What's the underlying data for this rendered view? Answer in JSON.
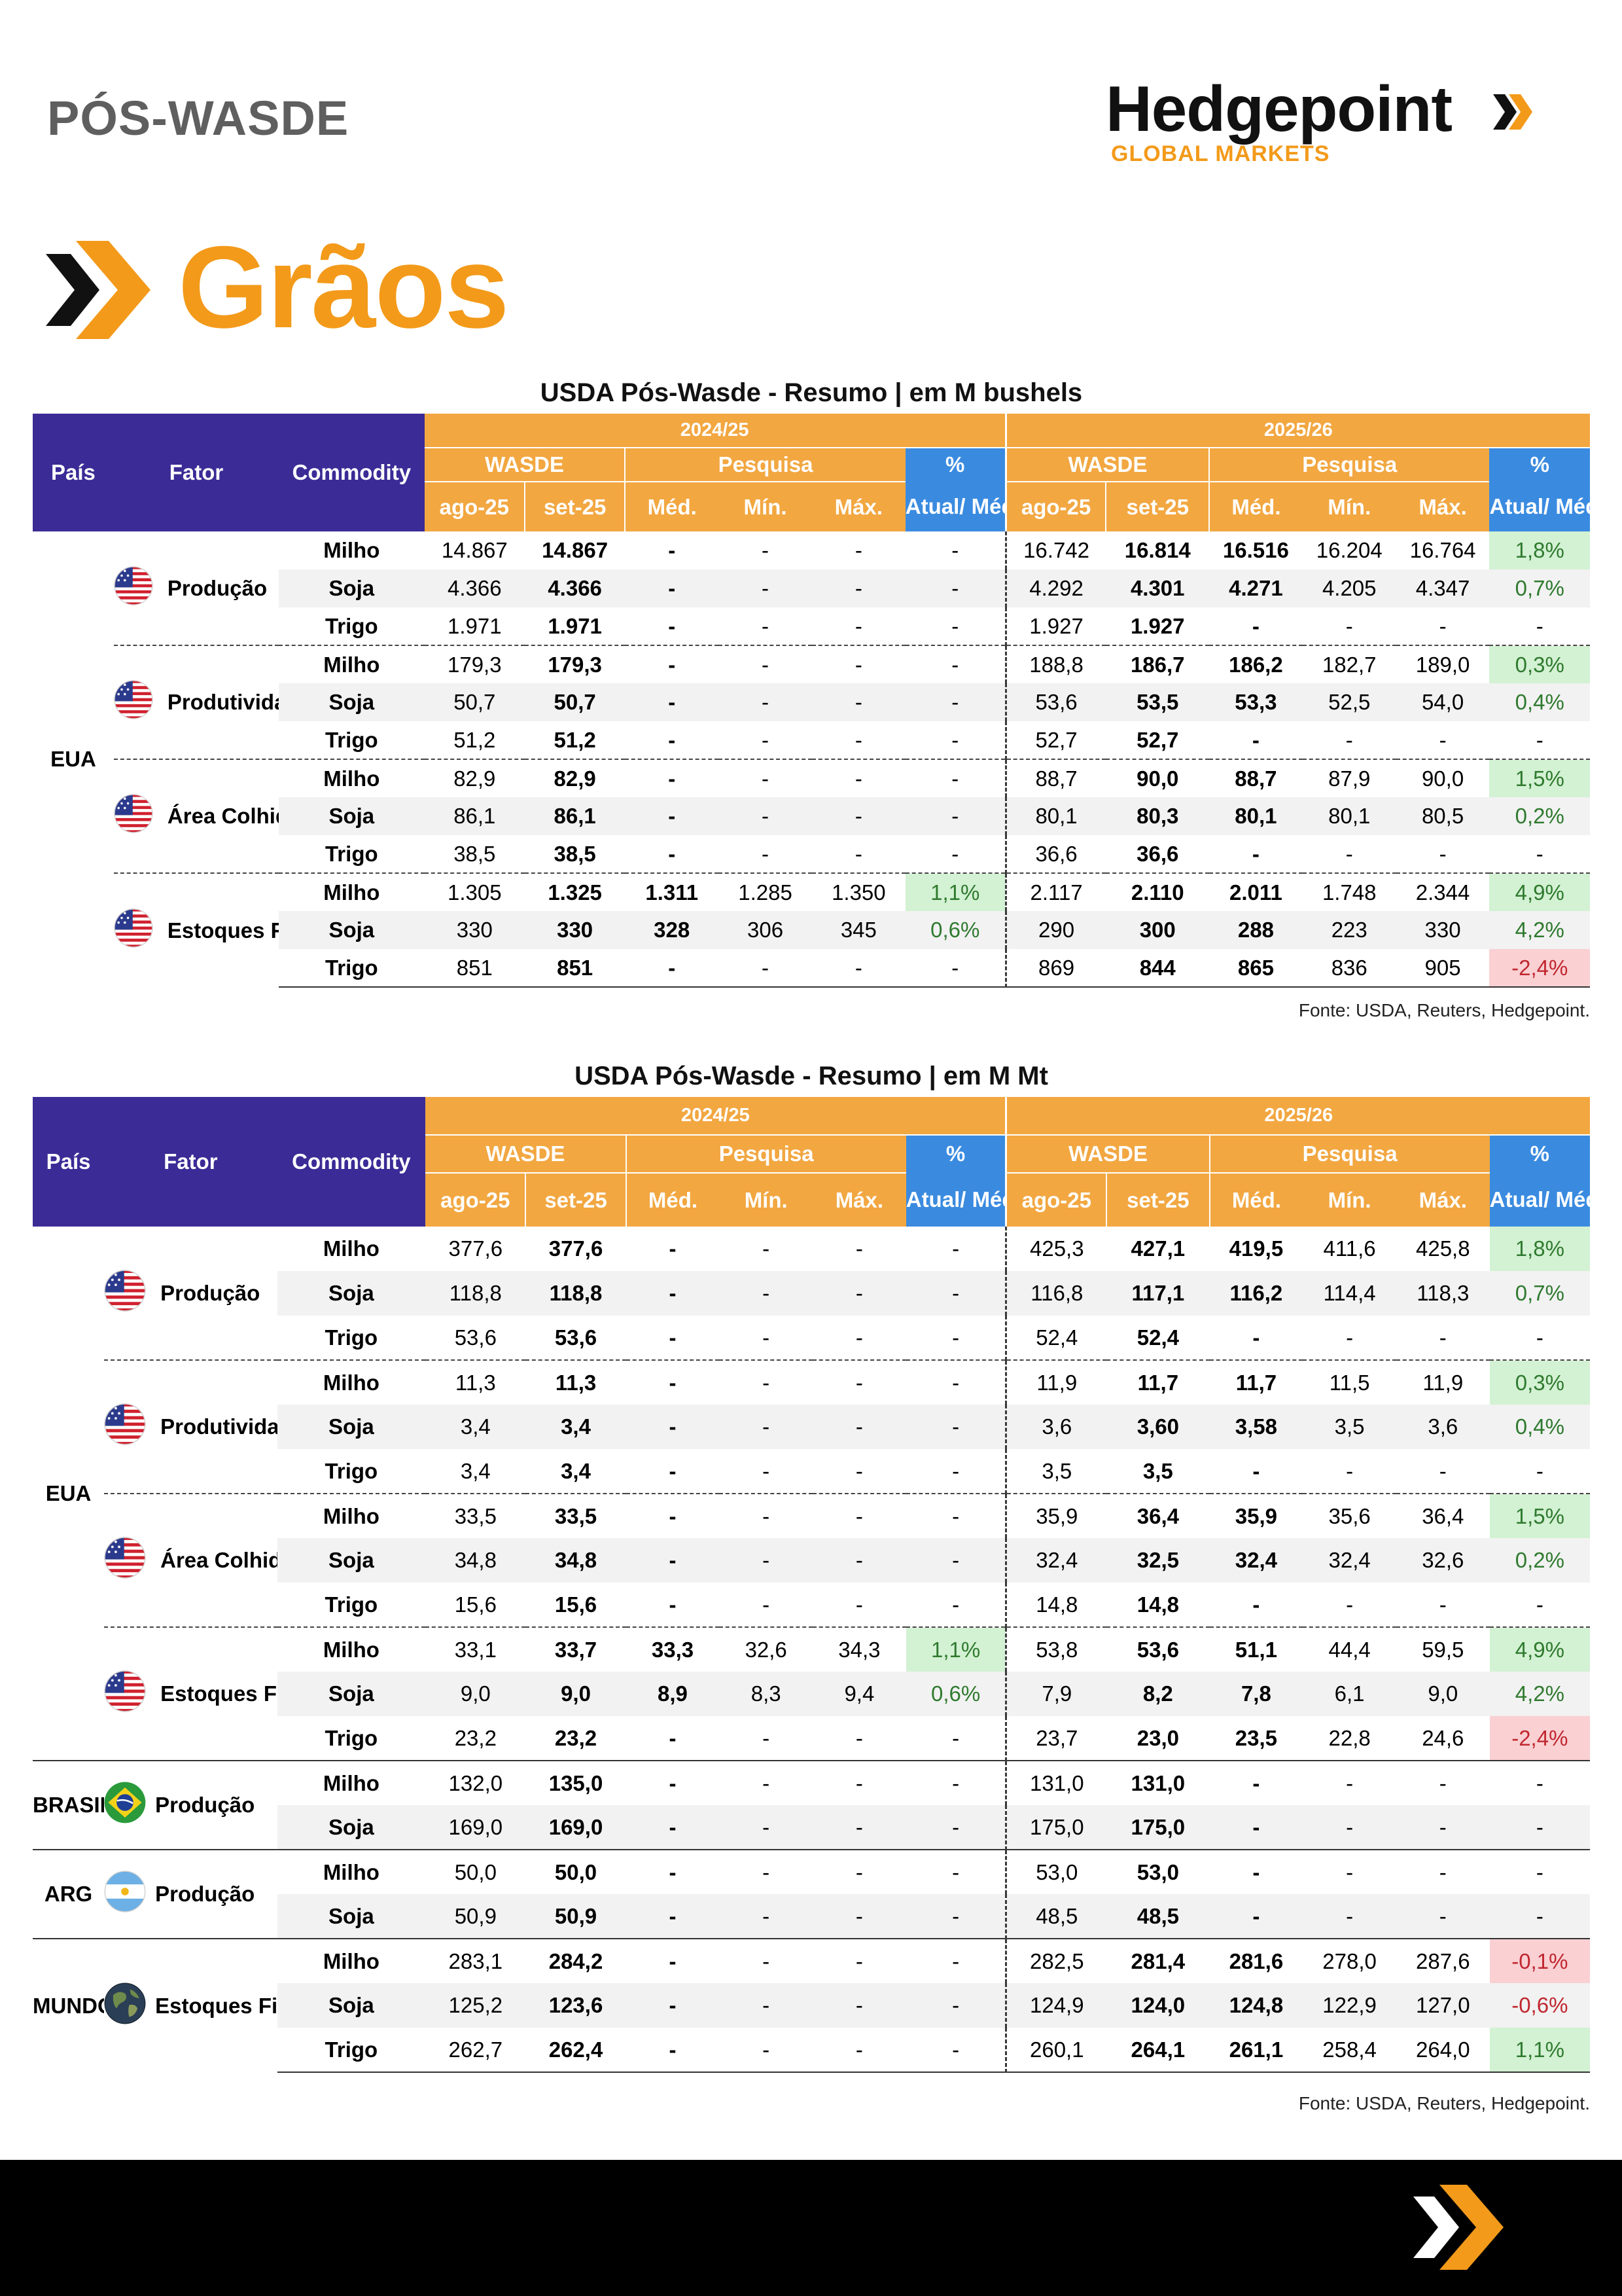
{
  "header": {
    "title": "PÓS-WASDE",
    "logo_name": "Hedgepoint",
    "logo_sub": "GLOBAL MARKETS",
    "section": "Grãos"
  },
  "colors": {
    "brand_orange": "#f39a1a",
    "header_navy": "#3b2b96",
    "header_orange": "#f2a741",
    "header_blue": "#3a8be0",
    "positive_bg": "#d3f1d3",
    "negative_bg": "#fad0d3"
  },
  "columns": {
    "pais": "País",
    "fator": "Fator",
    "commodity": "Commodity",
    "year1": "2024/25",
    "year2": "2025/26",
    "wasde": "WASDE",
    "pesquisa": "Pesquisa",
    "pct_top": "%",
    "pct_bot": "Atual/ Méd.",
    "ago": "ago-25",
    "set": "set-25",
    "med": "Méd.",
    "min": "Mín.",
    "max": "Máx."
  },
  "table1": {
    "title": "USDA Pós-Wasde - Resumo | em M bushels",
    "source": "Fonte: USDA, Reuters, Hedgepoint.",
    "sections": [
      {
        "country": "EUA",
        "flag": "us-flag",
        "groups": [
          {
            "fator": "Produção",
            "rows": [
              {
                "commodity": "Milho",
                "v": [
                  "14.867",
                  "14.867",
                  "-",
                  "-",
                  "-",
                  "-",
                  "16.742",
                  "16.814",
                  "16.516",
                  "16.204",
                  "16.764",
                  "1,8%"
                ],
                "c1": "",
                "c2": "pos"
              },
              {
                "commodity": "Soja",
                "v": [
                  "4.366",
                  "4.366",
                  "-",
                  "-",
                  "-",
                  "-",
                  "4.292",
                  "4.301",
                  "4.271",
                  "4.205",
                  "4.347",
                  "0,7%"
                ],
                "c1": "",
                "c2": "pos"
              },
              {
                "commodity": "Trigo",
                "v": [
                  "1.971",
                  "1.971",
                  "-",
                  "-",
                  "-",
                  "-",
                  "1.927",
                  "1.927",
                  "-",
                  "-",
                  "-",
                  "-"
                ],
                "c1": "",
                "c2": ""
              }
            ]
          },
          {
            "fator": "Produtividade (bu/ac)",
            "rows": [
              {
                "commodity": "Milho",
                "v": [
                  "179,3",
                  "179,3",
                  "-",
                  "-",
                  "-",
                  "-",
                  "188,8",
                  "186,7",
                  "186,2",
                  "182,7",
                  "189,0",
                  "0,3%"
                ],
                "c1": "",
                "c2": "pos"
              },
              {
                "commodity": "Soja",
                "v": [
                  "50,7",
                  "50,7",
                  "-",
                  "-",
                  "-",
                  "-",
                  "53,6",
                  "53,5",
                  "53,3",
                  "52,5",
                  "54,0",
                  "0,4%"
                ],
                "c1": "",
                "c2": "pos"
              },
              {
                "commodity": "Trigo",
                "v": [
                  "51,2",
                  "51,2",
                  "-",
                  "-",
                  "-",
                  "-",
                  "52,7",
                  "52,7",
                  "-",
                  "-",
                  "-",
                  "-"
                ],
                "c1": "",
                "c2": ""
              }
            ]
          },
          {
            "fator": "Área Colhida (M acres)",
            "rows": [
              {
                "commodity": "Milho",
                "v": [
                  "82,9",
                  "82,9",
                  "-",
                  "-",
                  "-",
                  "-",
                  "88,7",
                  "90,0",
                  "88,7",
                  "87,9",
                  "90,0",
                  "1,5%"
                ],
                "c1": "",
                "c2": "pos"
              },
              {
                "commodity": "Soja",
                "v": [
                  "86,1",
                  "86,1",
                  "-",
                  "-",
                  "-",
                  "-",
                  "80,1",
                  "80,3",
                  "80,1",
                  "80,1",
                  "80,5",
                  "0,2%"
                ],
                "c1": "",
                "c2": "pos"
              },
              {
                "commodity": "Trigo",
                "v": [
                  "38,5",
                  "38,5",
                  "-",
                  "-",
                  "-",
                  "-",
                  "36,6",
                  "36,6",
                  "-",
                  "-",
                  "-",
                  "-"
                ],
                "c1": "",
                "c2": ""
              }
            ]
          },
          {
            "fator": "Estoques Finais",
            "rows": [
              {
                "commodity": "Milho",
                "v": [
                  "1.305",
                  "1.325",
                  "1.311",
                  "1.285",
                  "1.350",
                  "1,1%",
                  "2.117",
                  "2.110",
                  "2.011",
                  "1.748",
                  "2.344",
                  "4,9%"
                ],
                "c1": "pos",
                "c2": "pos"
              },
              {
                "commodity": "Soja",
                "v": [
                  "330",
                  "330",
                  "328",
                  "306",
                  "345",
                  "0,6%",
                  "290",
                  "300",
                  "288",
                  "223",
                  "330",
                  "4,2%"
                ],
                "c1": "pos",
                "c2": "pos"
              },
              {
                "commodity": "Trigo",
                "v": [
                  "851",
                  "851",
                  "-",
                  "-",
                  "-",
                  "-",
                  "869",
                  "844",
                  "865",
                  "836",
                  "905",
                  "-2,4%"
                ],
                "c1": "",
                "c2": "neg"
              }
            ]
          }
        ]
      }
    ]
  },
  "table2": {
    "title": "USDA Pós-Wasde - Resumo | em M Mt",
    "source": "Fonte: USDA, Reuters, Hedgepoint.",
    "sections": [
      {
        "country": "EUA",
        "flag": "us-flag",
        "groups": [
          {
            "fator": "Produção",
            "rows": [
              {
                "commodity": "Milho",
                "v": [
                  "377,6",
                  "377,6",
                  "-",
                  "-",
                  "-",
                  "-",
                  "425,3",
                  "427,1",
                  "419,5",
                  "411,6",
                  "425,8",
                  "1,8%"
                ],
                "c1": "",
                "c2": "pos"
              },
              {
                "commodity": "Soja",
                "v": [
                  "118,8",
                  "118,8",
                  "-",
                  "-",
                  "-",
                  "-",
                  "116,8",
                  "117,1",
                  "116,2",
                  "114,4",
                  "118,3",
                  "0,7%"
                ],
                "c1": "",
                "c2": "pos"
              },
              {
                "commodity": "Trigo",
                "v": [
                  "53,6",
                  "53,6",
                  "-",
                  "-",
                  "-",
                  "-",
                  "52,4",
                  "52,4",
                  "-",
                  "-",
                  "-",
                  "-"
                ],
                "c1": "",
                "c2": ""
              }
            ]
          },
          {
            "fator": "Produtividade (ton/ha)",
            "rows": [
              {
                "commodity": "Milho",
                "v": [
                  "11,3",
                  "11,3",
                  "-",
                  "-",
                  "-",
                  "-",
                  "11,9",
                  "11,7",
                  "11,7",
                  "11,5",
                  "11,9",
                  "0,3%"
                ],
                "c1": "",
                "c2": "pos"
              },
              {
                "commodity": "Soja",
                "v": [
                  "3,4",
                  "3,4",
                  "-",
                  "-",
                  "-",
                  "-",
                  "3,6",
                  "3,60",
                  "3,58",
                  "3,5",
                  "3,6",
                  "0,4%"
                ],
                "c1": "",
                "c2": "pos"
              },
              {
                "commodity": "Trigo",
                "v": [
                  "3,4",
                  "3,4",
                  "-",
                  "-",
                  "-",
                  "-",
                  "3,5",
                  "3,5",
                  "-",
                  "-",
                  "-",
                  "-"
                ],
                "c1": "",
                "c2": ""
              }
            ]
          },
          {
            "fator": "Área Colhida (M ha)",
            "rows": [
              {
                "commodity": "Milho",
                "v": [
                  "33,5",
                  "33,5",
                  "-",
                  "-",
                  "-",
                  "-",
                  "35,9",
                  "36,4",
                  "35,9",
                  "35,6",
                  "36,4",
                  "1,5%"
                ],
                "c1": "",
                "c2": "pos"
              },
              {
                "commodity": "Soja",
                "v": [
                  "34,8",
                  "34,8",
                  "-",
                  "-",
                  "-",
                  "-",
                  "32,4",
                  "32,5",
                  "32,4",
                  "32,4",
                  "32,6",
                  "0,2%"
                ],
                "c1": "",
                "c2": "pos"
              },
              {
                "commodity": "Trigo",
                "v": [
                  "15,6",
                  "15,6",
                  "-",
                  "-",
                  "-",
                  "-",
                  "14,8",
                  "14,8",
                  "-",
                  "-",
                  "-",
                  "-"
                ],
                "c1": "",
                "c2": ""
              }
            ]
          },
          {
            "fator": "Estoques Finais",
            "rows": [
              {
                "commodity": "Milho",
                "v": [
                  "33,1",
                  "33,7",
                  "33,3",
                  "32,6",
                  "34,3",
                  "1,1%",
                  "53,8",
                  "53,6",
                  "51,1",
                  "44,4",
                  "59,5",
                  "4,9%"
                ],
                "c1": "pos",
                "c2": "pos"
              },
              {
                "commodity": "Soja",
                "v": [
                  "9,0",
                  "9,0",
                  "8,9",
                  "8,3",
                  "9,4",
                  "0,6%",
                  "7,9",
                  "8,2",
                  "7,8",
                  "6,1",
                  "9,0",
                  "4,2%"
                ],
                "c1": "pos",
                "c2": "pos"
              },
              {
                "commodity": "Trigo",
                "v": [
                  "23,2",
                  "23,2",
                  "-",
                  "-",
                  "-",
                  "-",
                  "23,7",
                  "23,0",
                  "23,5",
                  "22,8",
                  "24,6",
                  "-2,4%"
                ],
                "c1": "",
                "c2": "neg"
              }
            ]
          }
        ]
      },
      {
        "country": "BRASIL",
        "flag": "brazil-flag",
        "groups": [
          {
            "fator": "Produção",
            "rows": [
              {
                "commodity": "Milho",
                "v": [
                  "132,0",
                  "135,0",
                  "-",
                  "-",
                  "-",
                  "-",
                  "131,0",
                  "131,0",
                  "-",
                  "-",
                  "-",
                  "-"
                ],
                "c1": "",
                "c2": ""
              },
              {
                "commodity": "Soja",
                "v": [
                  "169,0",
                  "169,0",
                  "-",
                  "-",
                  "-",
                  "-",
                  "175,0",
                  "175,0",
                  "-",
                  "-",
                  "-",
                  "-"
                ],
                "c1": "",
                "c2": ""
              }
            ]
          }
        ]
      },
      {
        "country": "ARG",
        "flag": "argentina-flag",
        "groups": [
          {
            "fator": "Produção",
            "rows": [
              {
                "commodity": "Milho",
                "v": [
                  "50,0",
                  "50,0",
                  "-",
                  "-",
                  "-",
                  "-",
                  "53,0",
                  "53,0",
                  "-",
                  "-",
                  "-",
                  "-"
                ],
                "c1": "",
                "c2": ""
              },
              {
                "commodity": "Soja",
                "v": [
                  "50,9",
                  "50,9",
                  "-",
                  "-",
                  "-",
                  "-",
                  "48,5",
                  "48,5",
                  "-",
                  "-",
                  "-",
                  "-"
                ],
                "c1": "",
                "c2": ""
              }
            ]
          }
        ]
      },
      {
        "country": "MUNDO",
        "flag": "globe-icon",
        "groups": [
          {
            "fator": "Estoques Finais",
            "rows": [
              {
                "commodity": "Milho",
                "v": [
                  "283,1",
                  "284,2",
                  "-",
                  "-",
                  "-",
                  "-",
                  "282,5",
                  "281,4",
                  "281,6",
                  "278,0",
                  "287,6",
                  "-0,1%"
                ],
                "c1": "",
                "c2": "neg"
              },
              {
                "commodity": "Soja",
                "v": [
                  "125,2",
                  "123,6",
                  "-",
                  "-",
                  "-",
                  "-",
                  "124,9",
                  "124,0",
                  "124,8",
                  "122,9",
                  "127,0",
                  "-0,6%"
                ],
                "c1": "",
                "c2": "neg"
              },
              {
                "commodity": "Trigo",
                "v": [
                  "262,7",
                  "262,4",
                  "-",
                  "-",
                  "-",
                  "-",
                  "260,1",
                  "264,1",
                  "261,1",
                  "258,4",
                  "264,0",
                  "1,1%"
                ],
                "c1": "",
                "c2": "pos"
              }
            ]
          }
        ]
      }
    ]
  }
}
